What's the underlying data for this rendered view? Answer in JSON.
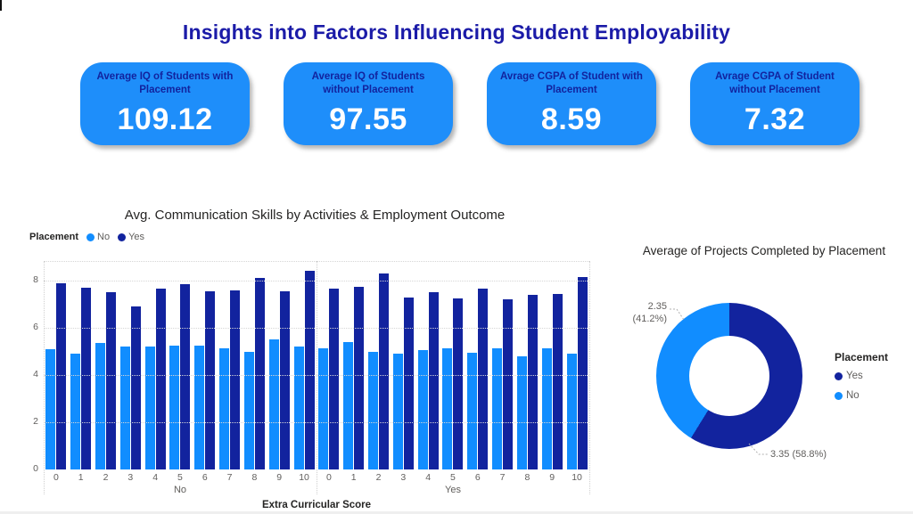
{
  "page": {
    "title": "Insights into Factors Influencing Student Employability",
    "title_color": "#1B1BA8"
  },
  "colors": {
    "card_bg": "#1E8EFA",
    "card_label": "#12239E",
    "placement_no": "#118DFF",
    "placement_yes": "#12239E"
  },
  "cards": [
    {
      "label": "Average IQ of Students with Placement",
      "value": "109.12"
    },
    {
      "label": "Average IQ of Students without Placement",
      "value": "97.55"
    },
    {
      "label": "Avrage CGPA of Student with Placement",
      "value": "8.59"
    },
    {
      "label": "Avrage CGPA of Student without Placement",
      "value": "7.32"
    }
  ],
  "chart_data": [
    {
      "type": "bar",
      "title": "Avg. Communication Skills by Activities & Employment Outcome",
      "legend_title": "Placement",
      "legend_position": "top-left",
      "legend": [
        {
          "name": "No",
          "color": "#118DFF"
        },
        {
          "name": "Yes",
          "color": "#12239E"
        }
      ],
      "xlabel": "Extra Curricular Score",
      "ylabel": "",
      "ylim": [
        0,
        8.83
      ],
      "yticks": [
        0,
        2,
        4,
        6,
        8
      ],
      "grid": true,
      "groups": [
        {
          "label": "No",
          "categories": [
            0,
            1,
            2,
            3,
            4,
            5,
            6,
            7,
            8,
            9,
            10
          ],
          "series": [
            {
              "name": "No",
              "values": [
                5.1,
                4.9,
                5.35,
                5.2,
                5.2,
                5.25,
                5.25,
                5.15,
                5.0,
                5.5,
                5.2
              ]
            },
            {
              "name": "Yes",
              "values": [
                7.9,
                7.7,
                7.5,
                6.9,
                7.65,
                7.85,
                7.55,
                7.6,
                8.1,
                7.55,
                8.4
              ]
            }
          ]
        },
        {
          "label": "Yes",
          "categories": [
            0,
            1,
            2,
            3,
            4,
            5,
            6,
            7,
            8,
            9,
            10
          ],
          "series": [
            {
              "name": "No",
              "values": [
                5.15,
                5.4,
                5.0,
                4.9,
                5.05,
                5.15,
                4.95,
                5.15,
                4.8,
                5.15,
                4.9
              ]
            },
            {
              "name": "Yes",
              "values": [
                7.65,
                7.75,
                8.3,
                7.3,
                7.5,
                7.25,
                7.65,
                7.2,
                7.4,
                7.45,
                8.15
              ]
            }
          ]
        }
      ]
    },
    {
      "type": "pie",
      "donut": true,
      "title": "Average of Projects Completed by Placement",
      "legend_title": "Placement",
      "legend_position": "right",
      "slices": [
        {
          "name": "Yes",
          "value": 3.35,
          "pct": 58.8,
          "callout": "3.35 (58.8%)",
          "color": "#12239E"
        },
        {
          "name": "No",
          "value": 2.35,
          "pct": 41.2,
          "callout_line1": "2.35",
          "callout_line2": "(41.2%)",
          "color": "#118DFF"
        }
      ]
    }
  ]
}
